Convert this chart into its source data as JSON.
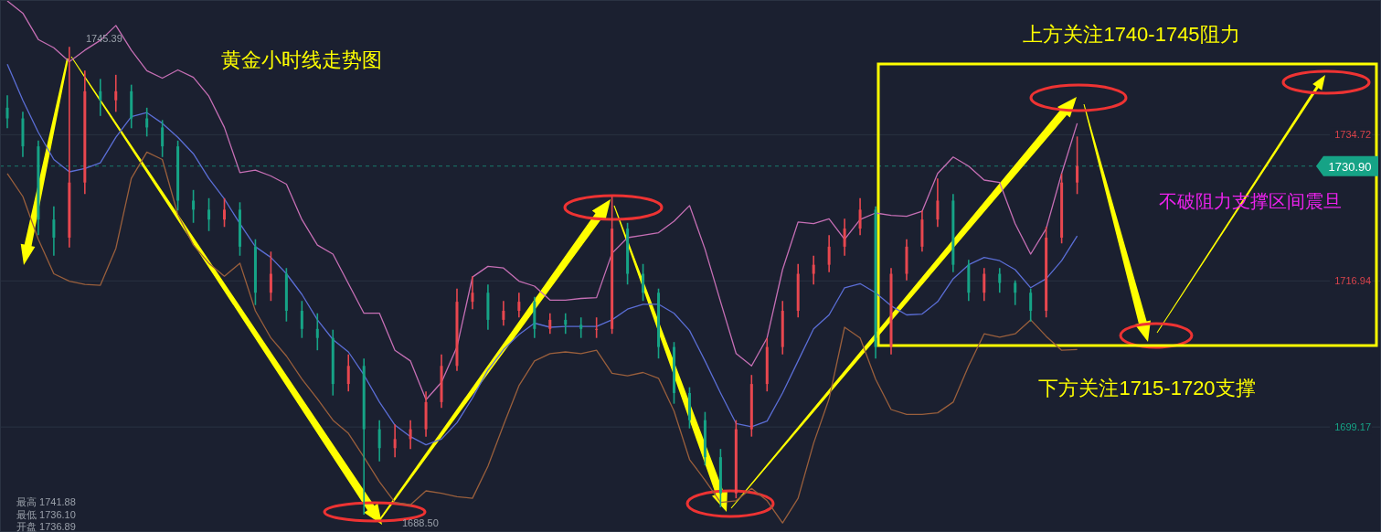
{
  "chart_data": {
    "type": "candlestick",
    "title": "黄金小时线走势图",
    "annotations": [
      "上方关注1740-1745阻力",
      "不破阻力支撑区间震旦",
      "下方关注1715-1720支撑",
      "最高 1741.88",
      "最低 1736.10",
      "开盘 1736.89",
      "1745.39",
      "1688.50"
    ],
    "categories": [
      null,
      null,
      null,
      null,
      null,
      null,
      null,
      null,
      null,
      null,
      null,
      null,
      null,
      null,
      null,
      null,
      null,
      null,
      null,
      null,
      null,
      null,
      null,
      null,
      null,
      null,
      null,
      null,
      null,
      null,
      null,
      null,
      null,
      null,
      null,
      null,
      null,
      null,
      null,
      null,
      null,
      null,
      null,
      null,
      null,
      null,
      null,
      null,
      null,
      null,
      null,
      null,
      null,
      null,
      null,
      null,
      null,
      null,
      null,
      null,
      null,
      null,
      null,
      null,
      null,
      null,
      null,
      null,
      null,
      null
    ],
    "ohlc": [
      [
        1738.0,
        1739.5,
        1735.5,
        1736.7
      ],
      [
        1736.7,
        1737.5,
        1732.0,
        1733.3
      ],
      [
        1733.3,
        1734.0,
        1722.5,
        1724.4
      ],
      [
        1724.4,
        1726.0,
        1720.0,
        1722.2
      ],
      [
        1722.2,
        1745.39,
        1721.0,
        1728.9
      ],
      [
        1728.9,
        1742.5,
        1727.5,
        1740.0
      ],
      [
        1740.0,
        1741.5,
        1737.0,
        1738.9
      ],
      [
        1738.9,
        1742.0,
        1737.5,
        1740.0
      ],
      [
        1740.0,
        1740.8,
        1735.5,
        1736.7
      ],
      [
        1736.7,
        1738.0,
        1734.5,
        1735.6
      ],
      [
        1735.6,
        1736.5,
        1732.0,
        1733.3
      ],
      [
        1733.3,
        1734.0,
        1725.5,
        1726.7
      ],
      [
        1726.7,
        1728.0,
        1724.0,
        1725.6
      ],
      [
        1725.6,
        1727.0,
        1723.0,
        1724.4
      ],
      [
        1724.4,
        1727.0,
        1723.5,
        1725.6
      ],
      [
        1725.6,
        1726.5,
        1720.0,
        1721.1
      ],
      [
        1721.1,
        1722.0,
        1714.0,
        1715.5
      ],
      [
        1715.5,
        1720.5,
        1714.5,
        1717.8
      ],
      [
        1717.8,
        1718.5,
        1712.0,
        1713.3
      ],
      [
        1713.3,
        1714.5,
        1710.0,
        1711.1
      ],
      [
        1711.1,
        1713.0,
        1708.5,
        1710.0
      ],
      [
        1710.0,
        1711.0,
        1703.0,
        1704.4
      ],
      [
        1704.4,
        1708.0,
        1703.5,
        1706.6
      ],
      [
        1706.6,
        1707.5,
        1688.5,
        1698.9
      ],
      [
        1698.9,
        1700.0,
        1695.0,
        1696.6
      ],
      [
        1696.6,
        1699.5,
        1695.5,
        1697.7
      ],
      [
        1697.7,
        1700.0,
        1696.5,
        1698.9
      ],
      [
        1698.9,
        1703.5,
        1698.0,
        1702.2
      ],
      [
        1702.2,
        1708.0,
        1701.5,
        1706.6
      ],
      [
        1706.6,
        1716.0,
        1706.0,
        1714.4
      ],
      [
        1714.4,
        1717.5,
        1713.5,
        1715.5
      ],
      [
        1715.5,
        1716.5,
        1711.0,
        1712.2
      ],
      [
        1712.2,
        1714.5,
        1711.5,
        1713.3
      ],
      [
        1713.3,
        1715.5,
        1712.5,
        1714.4
      ],
      [
        1714.4,
        1715.0,
        1710.0,
        1711.1
      ],
      [
        1711.1,
        1713.0,
        1710.5,
        1712.2
      ],
      [
        1712.2,
        1713.0,
        1710.5,
        1711.6
      ],
      [
        1711.6,
        1712.5,
        1710.0,
        1711.1
      ],
      [
        1711.1,
        1712.5,
        1710.0,
        1711.1
      ],
      [
        1711.1,
        1727.2,
        1710.5,
        1723.3
      ],
      [
        1723.3,
        1724.0,
        1716.5,
        1717.8
      ],
      [
        1717.8,
        1719.0,
        1714.5,
        1715.5
      ],
      [
        1715.5,
        1716.0,
        1707.5,
        1708.9
      ],
      [
        1708.9,
        1709.5,
        1702.0,
        1703.3
      ],
      [
        1703.3,
        1704.0,
        1699.0,
        1700.0
      ],
      [
        1700.0,
        1701.0,
        1694.5,
        1695.5
      ],
      [
        1695.5,
        1696.5,
        1689.4,
        1691.1
      ],
      [
        1691.1,
        1700.0,
        1690.5,
        1698.9
      ],
      [
        1698.9,
        1705.5,
        1698.0,
        1704.4
      ],
      [
        1704.4,
        1710.0,
        1703.5,
        1708.9
      ],
      [
        1708.9,
        1714.5,
        1708.0,
        1713.3
      ],
      [
        1713.3,
        1719.0,
        1712.5,
        1717.8
      ],
      [
        1717.8,
        1720.0,
        1716.5,
        1718.9
      ],
      [
        1718.9,
        1722.5,
        1718.0,
        1721.1
      ],
      [
        1721.1,
        1724.5,
        1720.0,
        1723.3
      ],
      [
        1723.3,
        1727.0,
        1722.5,
        1725.6
      ],
      [
        1725.6,
        1726.0,
        1707.5,
        1708.9
      ],
      [
        1708.9,
        1718.5,
        1708.0,
        1717.8
      ],
      [
        1717.8,
        1722.0,
        1717.0,
        1721.1
      ],
      [
        1721.1,
        1725.5,
        1720.5,
        1724.4
      ],
      [
        1724.4,
        1729.4,
        1723.5,
        1726.7
      ],
      [
        1726.7,
        1727.5,
        1718.0,
        1718.9
      ],
      [
        1718.9,
        1719.5,
        1714.5,
        1715.5
      ],
      [
        1715.5,
        1718.5,
        1714.5,
        1717.8
      ],
      [
        1717.8,
        1718.5,
        1715.5,
        1716.7
      ],
      [
        1716.7,
        1717.0,
        1714.0,
        1715.5
      ],
      [
        1715.5,
        1716.0,
        1712.0,
        1713.3
      ],
      [
        1713.3,
        1723.5,
        1712.5,
        1722.2
      ],
      [
        1722.2,
        1730.0,
        1721.5,
        1728.9
      ],
      [
        1728.9,
        1734.5,
        1727.5,
        1730.9
      ]
    ],
    "colors": [
      "#16a386",
      "#16a386",
      "#16a386",
      "#16a386",
      "#e8474f",
      "#e8474f",
      "#16a386",
      "#e8474f",
      "#16a386",
      "#16a386",
      "#16a386",
      "#16a386",
      "#16a386",
      "#16a386",
      "#e8474f",
      "#16a386",
      "#16a386",
      "#e8474f",
      "#16a386",
      "#16a386",
      "#16a386",
      "#16a386",
      "#e8474f",
      "#16a386",
      "#16a386",
      "#e8474f",
      "#e8474f",
      "#e8474f",
      "#e8474f",
      "#e8474f",
      "#e8474f",
      "#16a386",
      "#e8474f",
      "#e8474f",
      "#16a386",
      "#e8474f",
      "#16a386",
      "#16a386",
      "#e8474f",
      "#e8474f",
      "#16a386",
      "#16a386",
      "#16a386",
      "#16a386",
      "#16a386",
      "#16a386",
      "#16a386",
      "#e8474f",
      "#e8474f",
      "#e8474f",
      "#e8474f",
      "#e8474f",
      "#e8474f",
      "#e8474f",
      "#e8474f",
      "#e8474f",
      "#16a386",
      "#e8474f",
      "#e8474f",
      "#e8474f",
      "#e8474f",
      "#16a386",
      "#16a386",
      "#e8474f",
      "#16a386",
      "#16a386",
      "#16a386",
      "#e8474f",
      "#e8474f",
      "#e8474f"
    ],
    "series": [
      {
        "type": "line",
        "color": "#c66fb5",
        "values": [
          1751.0,
          1749.5,
          1746.3,
          1745.3,
          1743.6,
          1745.0,
          1746.2,
          1748.0,
          1745.0,
          1742.5,
          1741.6,
          1742.6,
          1741.7,
          1739.4,
          1735.6,
          1730.1,
          1730.4,
          1729.7,
          1728.7,
          1724.4,
          1721.3,
          1720.2,
          1716.6,
          1713.0,
          1713.0,
          1708.5,
          1707.2,
          1702.5,
          1704.6,
          1708.9,
          1717.4,
          1718.7,
          1718.5,
          1716.9,
          1716.3,
          1714.6,
          1714.6,
          1714.8,
          1714.9,
          1720.3,
          1722.2,
          1722.5,
          1722.8,
          1724.2,
          1726.1,
          1720.8,
          1714.4,
          1708.1,
          1706.6,
          1710.0,
          1718.3,
          1724.1,
          1723.9,
          1724.5,
          1722.0,
          1724.4,
          1725.2,
          1724.9,
          1724.8,
          1725.4,
          1730.0,
          1732.0,
          1730.9,
          1729.2,
          1728.9,
          1723.9,
          1720.2,
          1723.3,
          1730.0,
          1736.1
        ]
      },
      {
        "type": "line",
        "color": "#5b6ed6",
        "values": [
          1743.3,
          1738.9,
          1735.0,
          1731.7,
          1730.2,
          1730.6,
          1731.3,
          1734.4,
          1736.9,
          1737.4,
          1736.1,
          1734.4,
          1732.4,
          1729.4,
          1726.9,
          1723.9,
          1721.1,
          1719.8,
          1717.8,
          1715.3,
          1712.2,
          1709.8,
          1708.3,
          1705.5,
          1702.2,
          1699.4,
          1698.0,
          1697.0,
          1697.7,
          1699.7,
          1702.7,
          1706.1,
          1708.6,
          1710.4,
          1711.8,
          1711.3,
          1711.4,
          1711.4,
          1711.4,
          1712.2,
          1713.5,
          1714.1,
          1714.1,
          1713.0,
          1710.9,
          1707.2,
          1703.3,
          1699.6,
          1699.2,
          1699.9,
          1703.3,
          1707.2,
          1711.1,
          1712.8,
          1716.1,
          1716.6,
          1715.5,
          1713.9,
          1712.8,
          1712.9,
          1714.4,
          1717.2,
          1718.9,
          1719.8,
          1719.4,
          1718.3,
          1716.1,
          1717.2,
          1719.4,
          1722.4
        ]
      },
      {
        "type": "line",
        "color": "#9a5f3c",
        "values": [
          1730.0,
          1727.2,
          1722.0,
          1717.8,
          1716.9,
          1716.5,
          1716.4,
          1720.9,
          1729.4,
          1732.6,
          1731.7,
          1725.0,
          1721.3,
          1719.1,
          1717.5,
          1719.1,
          1713.3,
          1710.0,
          1707.8,
          1705.0,
          1702.6,
          1700.0,
          1698.4,
          1695.5,
          1692.5,
          1690.0,
          1689.7,
          1691.4,
          1691.1,
          1690.7,
          1690.5,
          1694.4,
          1699.4,
          1704.2,
          1707.2,
          1708.1,
          1708.3,
          1708.1,
          1708.5,
          1705.7,
          1705.4,
          1705.8,
          1705.1,
          1701.1,
          1695.2,
          1692.7,
          1690.0,
          1690.2,
          1691.7,
          1690.2,
          1687.5,
          1690.5,
          1697.2,
          1702.6,
          1711.3,
          1710.0,
          1705.0,
          1701.3,
          1700.7,
          1700.7,
          1700.9,
          1702.2,
          1706.6,
          1710.5,
          1710.1,
          1710.5,
          1712.2,
          1710.2,
          1708.5,
          1708.6
        ]
      }
    ],
    "ylim": [
      1686.4,
      1751.1
    ],
    "yticks": [
      1734.72,
      1716.94,
      1699.17
    ],
    "ref_lines": [
      {
        "axis": "y",
        "value": 1730.9,
        "label": "1730.90",
        "color": "#16a386",
        "line_style": "dashed"
      }
    ],
    "grid": "y",
    "tick_labels": "y"
  }
}
